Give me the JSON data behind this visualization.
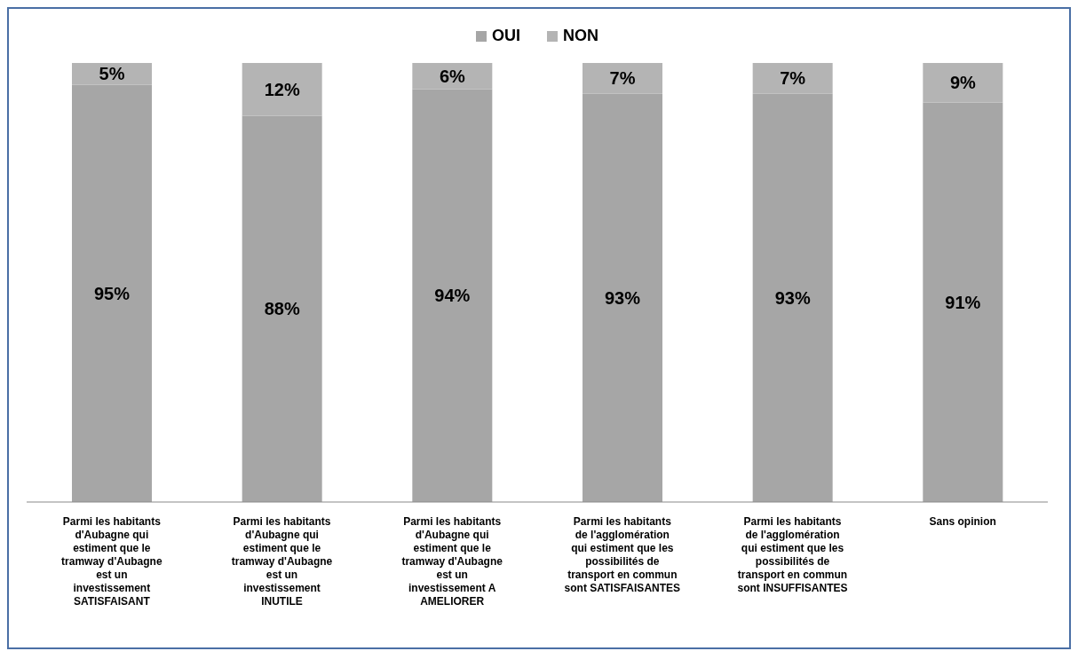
{
  "chart_data": {
    "type": "bar",
    "stacked": true,
    "legend": "top",
    "categories": [
      "Parmi les habitants d'Aubagne qui estiment que le tramway d'Aubagne est un investissement SATISFAISANT",
      "Parmi les habitants d'Aubagne qui estiment que le tramway d'Aubagne est un investissement INUTILE",
      "Parmi les habitants d'Aubagne qui estiment que le tramway d'Aubagne est un investissement A AMELIORER",
      "Parmi les habitants de l'agglomération qui estiment que les possibilités de transport en commun sont SATISFAISANTES",
      "Parmi les habitants de l'agglomération qui estiment que les possibilités de transport en commun sont INSUFFISANTES",
      "Sans opinion"
    ],
    "series": [
      {
        "name": "OUI",
        "color": "#a6a6a6",
        "values": [
          95,
          88,
          94,
          93,
          93,
          91
        ],
        "value_labels": [
          "95%",
          "88%",
          "94%",
          "93%",
          "93%",
          "91%"
        ]
      },
      {
        "name": "NON",
        "color": "#b4b4b4",
        "values": [
          5,
          12,
          6,
          7,
          7,
          9
        ],
        "value_labels": [
          "5%",
          "12%",
          "6%",
          "7%",
          "7%",
          "9%"
        ]
      }
    ]
  }
}
